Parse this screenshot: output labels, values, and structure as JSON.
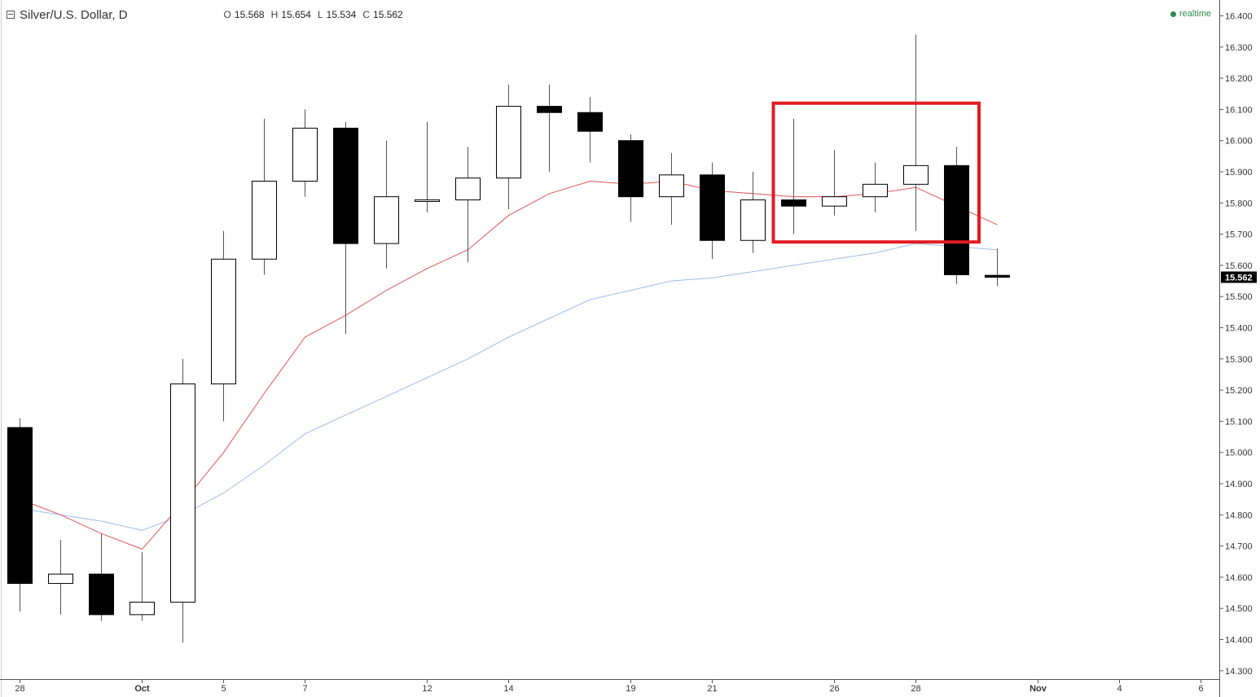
{
  "header": {
    "symbol_title": "Silver/U.S. Dollar, D",
    "ohlc": [
      {
        "label": "O",
        "value": "15.568"
      },
      {
        "label": "H",
        "value": "15.654"
      },
      {
        "label": "L",
        "value": "15.534"
      },
      {
        "label": "C",
        "value": "15.562"
      }
    ],
    "realtime_label": "realtime",
    "realtime_color": "#2c8a4c"
  },
  "colors": {
    "bear_body": "#000000",
    "bull_body": "#ffffff",
    "candle_outline": "#000000",
    "wick": "#555555",
    "ma_fast": "#e05555",
    "ma_slow": "#9dbde8",
    "highlight_box": "#e31b23",
    "axis_text": "#333333",
    "last_price_bg": "#000000",
    "last_price_text": "#ffffff"
  },
  "chart_data": {
    "type": "candlestick",
    "title": "Silver/U.S. Dollar, D",
    "ylim": [
      14.27,
      16.43
    ],
    "y_ticks": [
      "16.400",
      "16.300",
      "16.200",
      "16.100",
      "16.000",
      "15.900",
      "15.800",
      "15.700",
      "15.600",
      "15.500",
      "15.400",
      "15.300",
      "15.200",
      "15.100",
      "15.000",
      "14.900",
      "14.800",
      "14.700",
      "14.600",
      "14.500",
      "14.400",
      "14.300"
    ],
    "x_ticks": [
      {
        "label": "28",
        "slot": 0
      },
      {
        "label": "Oct",
        "slot": 3
      },
      {
        "label": "5",
        "slot": 5
      },
      {
        "label": "7",
        "slot": 7
      },
      {
        "label": "12",
        "slot": 10
      },
      {
        "label": "14",
        "slot": 12
      },
      {
        "label": "19",
        "slot": 15
      },
      {
        "label": "21",
        "slot": 17
      },
      {
        "label": "26",
        "slot": 20
      },
      {
        "label": "28",
        "slot": 22
      },
      {
        "label": "Nov",
        "slot": 25
      },
      {
        "label": "4",
        "slot": 27
      },
      {
        "label": "6",
        "slot": 29
      }
    ],
    "candles": [
      {
        "slot": 0,
        "open": 15.08,
        "high": 15.11,
        "low": 14.49,
        "close": 14.58
      },
      {
        "slot": 1,
        "open": 14.58,
        "high": 14.72,
        "low": 14.48,
        "close": 14.61
      },
      {
        "slot": 2,
        "open": 14.61,
        "high": 14.74,
        "low": 14.46,
        "close": 14.48
      },
      {
        "slot": 3,
        "open": 14.48,
        "high": 14.68,
        "low": 14.46,
        "close": 14.52
      },
      {
        "slot": 4,
        "open": 14.52,
        "high": 15.3,
        "low": 14.39,
        "close": 15.22
      },
      {
        "slot": 5,
        "open": 15.22,
        "high": 15.71,
        "low": 15.1,
        "close": 15.62
      },
      {
        "slot": 6,
        "open": 15.62,
        "high": 16.07,
        "low": 15.57,
        "close": 15.87
      },
      {
        "slot": 7,
        "open": 15.87,
        "high": 16.1,
        "low": 15.82,
        "close": 16.04
      },
      {
        "slot": 8,
        "open": 16.04,
        "high": 16.06,
        "low": 15.38,
        "close": 15.67
      },
      {
        "slot": 9,
        "open": 15.67,
        "high": 16.0,
        "low": 15.59,
        "close": 15.82
      },
      {
        "slot": 10,
        "open": 15.81,
        "high": 16.06,
        "low": 15.77,
        "close": 15.81
      },
      {
        "slot": 11,
        "open": 15.81,
        "high": 15.98,
        "low": 15.61,
        "close": 15.88
      },
      {
        "slot": 12,
        "open": 15.88,
        "high": 16.18,
        "low": 15.78,
        "close": 16.11
      },
      {
        "slot": 13,
        "open": 16.11,
        "high": 16.18,
        "low": 15.9,
        "close": 16.09
      },
      {
        "slot": 14,
        "open": 16.09,
        "high": 16.14,
        "low": 15.93,
        "close": 16.03
      },
      {
        "slot": 15,
        "open": 16.0,
        "high": 16.02,
        "low": 15.74,
        "close": 15.82
      },
      {
        "slot": 16,
        "open": 15.82,
        "high": 15.96,
        "low": 15.73,
        "close": 15.89
      },
      {
        "slot": 17,
        "open": 15.89,
        "high": 15.93,
        "low": 15.62,
        "close": 15.68
      },
      {
        "slot": 18,
        "open": 15.68,
        "high": 15.9,
        "low": 15.64,
        "close": 15.81
      },
      {
        "slot": 19,
        "open": 15.81,
        "high": 16.07,
        "low": 15.7,
        "close": 15.79
      },
      {
        "slot": 20,
        "open": 15.79,
        "high": 15.97,
        "low": 15.76,
        "close": 15.82
      },
      {
        "slot": 21,
        "open": 15.82,
        "high": 15.93,
        "low": 15.77,
        "close": 15.86
      },
      {
        "slot": 22,
        "open": 15.86,
        "high": 16.34,
        "low": 15.71,
        "close": 15.92
      },
      {
        "slot": 23,
        "open": 15.92,
        "high": 15.98,
        "low": 15.54,
        "close": 15.57
      },
      {
        "slot": 24,
        "open": 15.568,
        "high": 15.654,
        "low": 15.534,
        "close": 15.562
      }
    ],
    "series": [
      {
        "type": "line",
        "color": "#e05555",
        "points": [
          [
            0,
            14.85
          ],
          [
            1,
            14.8
          ],
          [
            2,
            14.74
          ],
          [
            3,
            14.69
          ],
          [
            4,
            14.84
          ],
          [
            5,
            15.0
          ],
          [
            6,
            15.19
          ],
          [
            7,
            15.37
          ],
          [
            8,
            15.44
          ],
          [
            9,
            15.52
          ],
          [
            10,
            15.59
          ],
          [
            11,
            15.65
          ],
          [
            12,
            15.76
          ],
          [
            13,
            15.83
          ],
          [
            14,
            15.87
          ],
          [
            15,
            15.86
          ],
          [
            16,
            15.87
          ],
          [
            17,
            15.84
          ],
          [
            18,
            15.83
          ],
          [
            19,
            15.82
          ],
          [
            20,
            15.82
          ],
          [
            21,
            15.83
          ],
          [
            22,
            15.85
          ],
          [
            23,
            15.79
          ],
          [
            24,
            15.73
          ]
        ]
      },
      {
        "type": "line",
        "color": "#9dbde8",
        "points": [
          [
            0,
            14.82
          ],
          [
            1,
            14.8
          ],
          [
            2,
            14.78
          ],
          [
            3,
            14.75
          ],
          [
            4,
            14.8
          ],
          [
            5,
            14.87
          ],
          [
            6,
            14.96
          ],
          [
            7,
            15.06
          ],
          [
            8,
            15.12
          ],
          [
            9,
            15.18
          ],
          [
            10,
            15.24
          ],
          [
            11,
            15.3
          ],
          [
            12,
            15.37
          ],
          [
            13,
            15.43
          ],
          [
            14,
            15.49
          ],
          [
            15,
            15.52
          ],
          [
            16,
            15.55
          ],
          [
            17,
            15.56
          ],
          [
            18,
            15.58
          ],
          [
            19,
            15.6
          ],
          [
            20,
            15.62
          ],
          [
            21,
            15.64
          ],
          [
            22,
            15.67
          ],
          [
            23,
            15.66
          ],
          [
            24,
            15.65
          ]
        ]
      }
    ],
    "last_price": "15.562",
    "highlight": {
      "slot_start": 18.5,
      "slot_end": 23.55,
      "price_top": 16.12,
      "price_bottom": 15.675
    }
  }
}
